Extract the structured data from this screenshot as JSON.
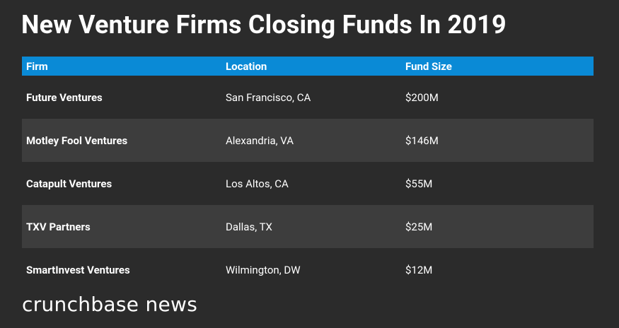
{
  "header": {
    "title": "New Venture Firms Closing Funds In 2019"
  },
  "table": {
    "columns": [
      "Firm",
      "Location",
      "Fund Size"
    ],
    "rows": [
      [
        "Future Ventures",
        "San Francisco, CA",
        "$200M"
      ],
      [
        "Motley Fool Ventures",
        "Alexandria, VA",
        "$146M"
      ],
      [
        "Catapult Ventures",
        "Los Altos, CA",
        "$55M"
      ],
      [
        "TXV Partners",
        "Dallas, TX",
        "$25M"
      ],
      [
        "SmartInvest Ventures",
        "Wilmington, DW",
        "$12M"
      ]
    ]
  },
  "footer": {
    "brand": "crunchbase news"
  }
}
